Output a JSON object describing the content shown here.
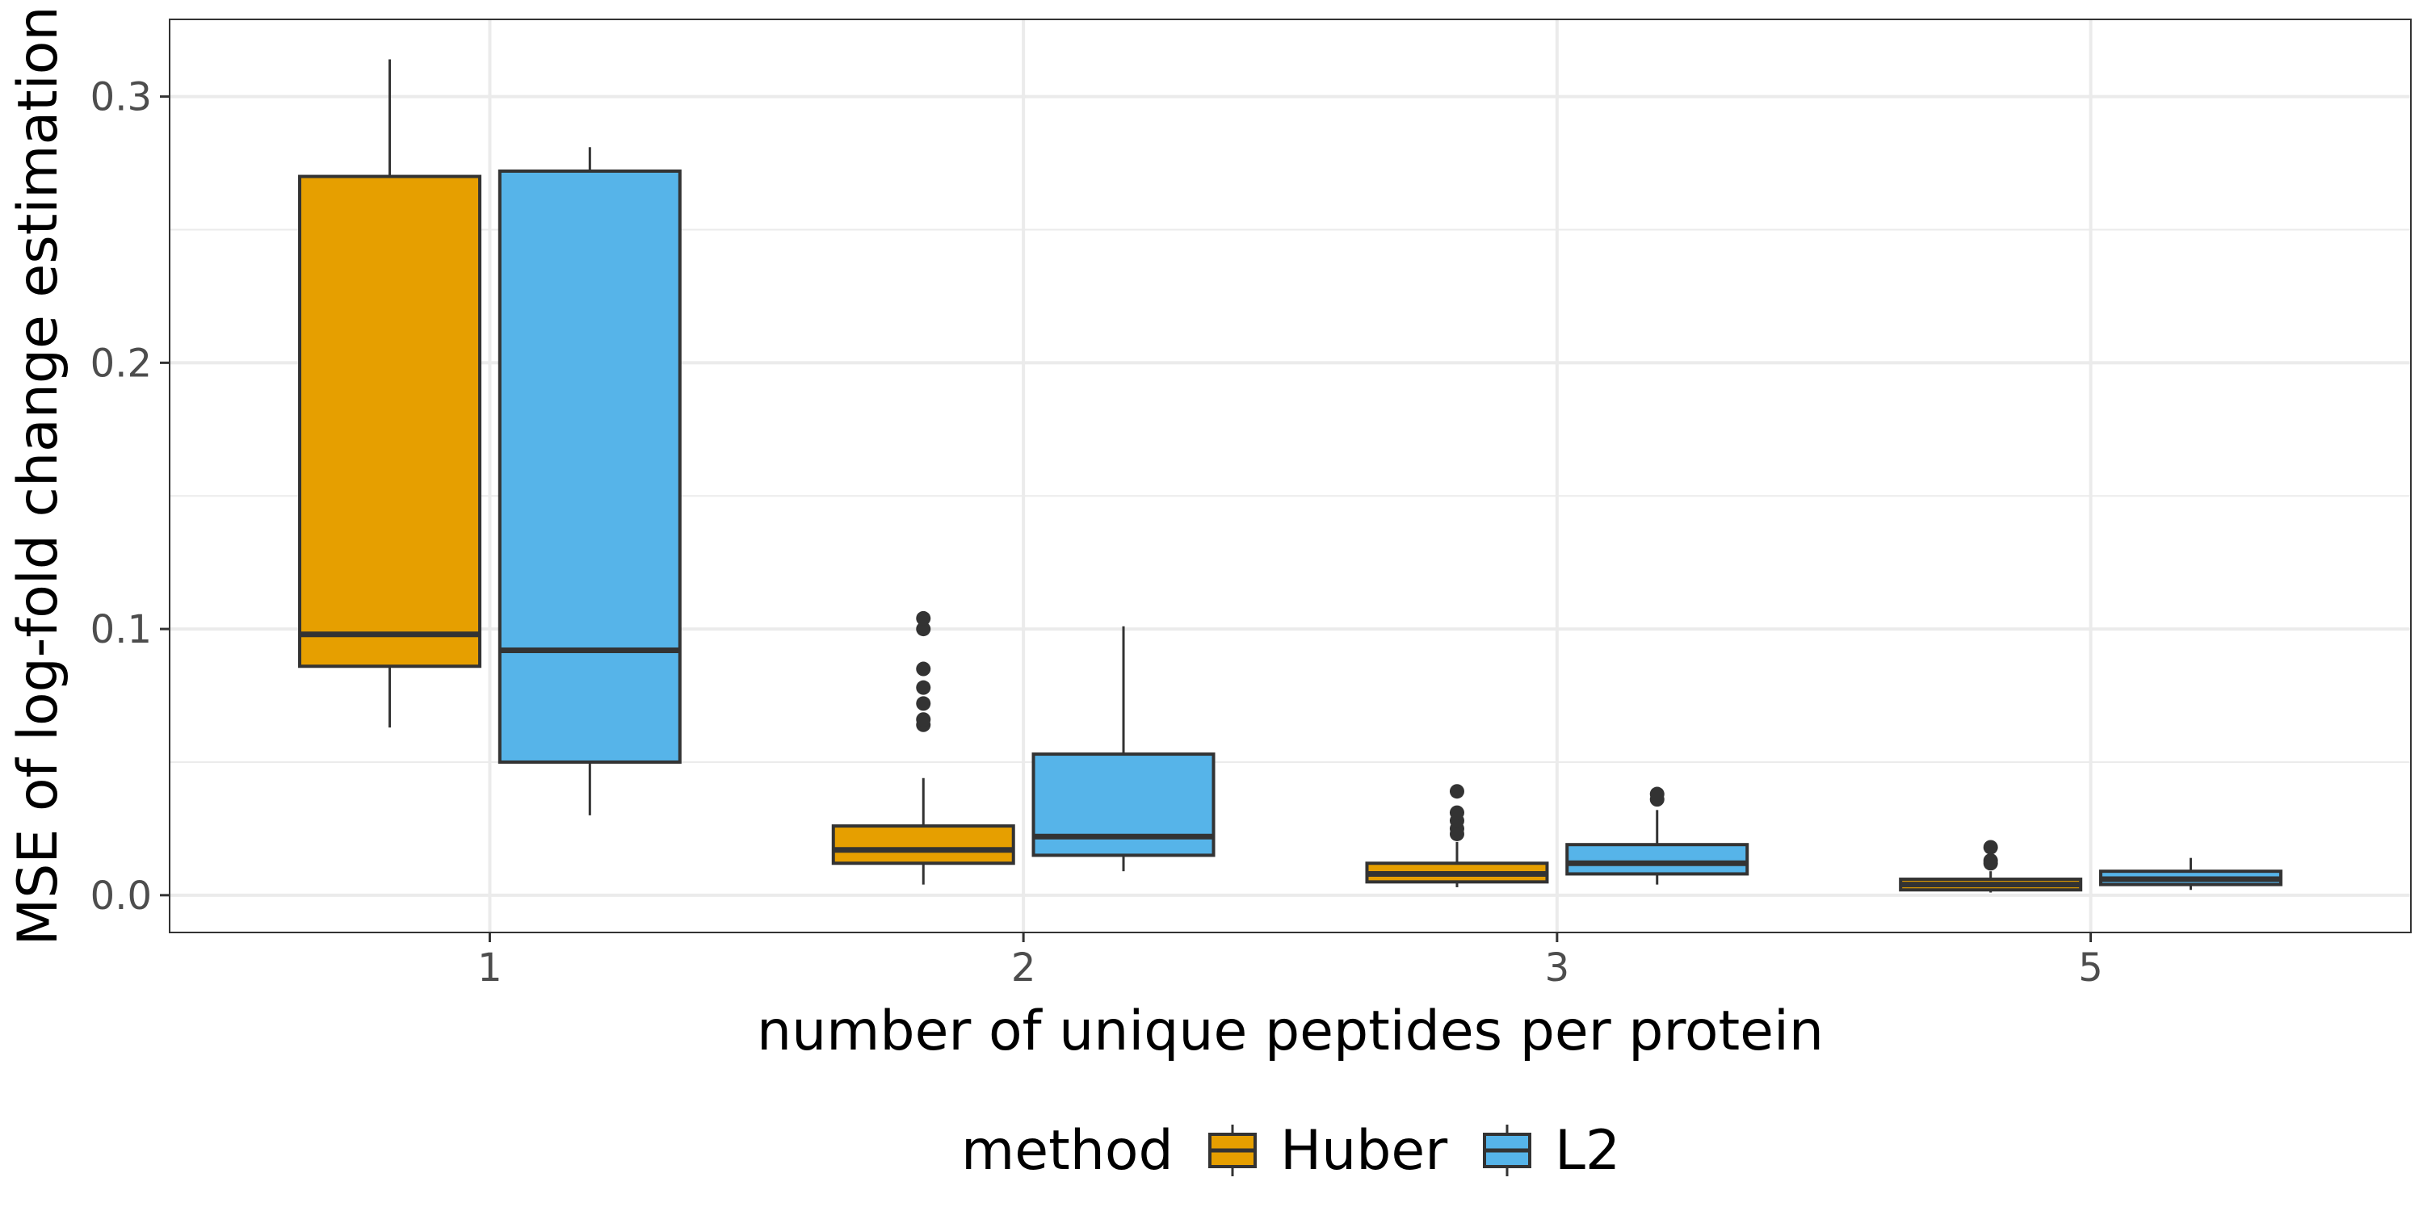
{
  "chart_data": {
    "type": "boxplot",
    "xlabel": "number of unique peptides per protein",
    "ylabel": "MSE of log-fold change estimation",
    "categories": [
      "1",
      "2",
      "3",
      "5"
    ],
    "ylim": [
      -0.014,
      0.329
    ],
    "yticks": [
      0.0,
      0.1,
      0.2,
      0.3
    ],
    "ytick_labels": [
      "0.0",
      "0.1",
      "0.2",
      "0.3"
    ],
    "grid": true,
    "legend": {
      "title": "method",
      "position": "bottom",
      "entries": [
        "Huber",
        "L2"
      ]
    },
    "series": [
      {
        "name": "Huber",
        "color": "#E69F00",
        "boxes": [
          {
            "category": "1",
            "whisker_low": 0.063,
            "q1": 0.086,
            "median": 0.098,
            "q3": 0.27,
            "whisker_high": 0.314,
            "outliers": []
          },
          {
            "category": "2",
            "whisker_low": 0.004,
            "q1": 0.012,
            "median": 0.017,
            "q3": 0.026,
            "whisker_high": 0.044,
            "outliers": [
              0.064,
              0.066,
              0.072,
              0.078,
              0.085,
              0.1,
              0.104
            ]
          },
          {
            "category": "3",
            "whisker_low": 0.003,
            "q1": 0.005,
            "median": 0.008,
            "q3": 0.012,
            "whisker_high": 0.02,
            "outliers": [
              0.023,
              0.025,
              0.028,
              0.031,
              0.039
            ]
          },
          {
            "category": "5",
            "whisker_low": 0.001,
            "q1": 0.002,
            "median": 0.004,
            "q3": 0.006,
            "whisker_high": 0.009,
            "outliers": [
              0.012,
              0.013,
              0.018
            ]
          }
        ]
      },
      {
        "name": "L2",
        "color": "#56B4E9",
        "boxes": [
          {
            "category": "1",
            "whisker_low": 0.03,
            "q1": 0.05,
            "median": 0.092,
            "q3": 0.272,
            "whisker_high": 0.281,
            "outliers": []
          },
          {
            "category": "2",
            "whisker_low": 0.009,
            "q1": 0.015,
            "median": 0.022,
            "q3": 0.053,
            "whisker_high": 0.101,
            "outliers": []
          },
          {
            "category": "3",
            "whisker_low": 0.004,
            "q1": 0.008,
            "median": 0.012,
            "q3": 0.019,
            "whisker_high": 0.032,
            "outliers": [
              0.036,
              0.038
            ]
          },
          {
            "category": "5",
            "whisker_low": 0.002,
            "q1": 0.004,
            "median": 0.006,
            "q3": 0.009,
            "whisker_high": 0.014,
            "outliers": []
          }
        ]
      }
    ]
  }
}
